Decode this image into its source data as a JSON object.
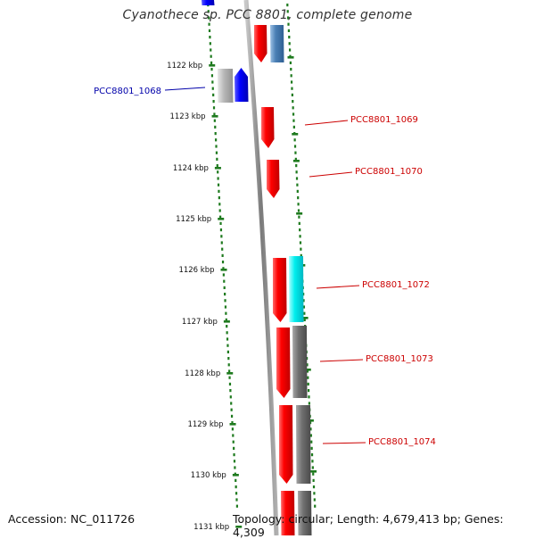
{
  "title": "Cyanothece sp. PCC 8801, complete genome",
  "accession": "Accession: NC_011726",
  "topology": "Topology: circular; Length: 4,679,413 bp; Genes: 4,309",
  "colors": {
    "backbone": "#8a8a8a",
    "dots": "#1e7a1e",
    "forward_gene": "#ff0000",
    "reverse_gene": "#0000ff",
    "steelblue_gene": "#4a7fb5",
    "cyan_gene": "#00e5ee",
    "gray_gene": "#707070",
    "light_gray_gene": "#b0b0b0",
    "label_red": "#cc0000",
    "label_blue": "#0000aa"
  },
  "ticks": [
    {
      "label": "1122 kbp"
    },
    {
      "label": "1123 kbp"
    },
    {
      "label": "1124 kbp"
    },
    {
      "label": "1125 kbp"
    },
    {
      "label": "1126 kbp"
    },
    {
      "label": "1127 kbp"
    },
    {
      "label": "1128 kbp"
    },
    {
      "label": "1129 kbp"
    },
    {
      "label": "1130 kbp"
    },
    {
      "label": "1131 kbp"
    }
  ],
  "gene_labels": [
    {
      "text": "PCC8801_1068",
      "color": "blue"
    },
    {
      "text": "PCC8801_1069",
      "color": "red"
    },
    {
      "text": "PCC8801_1070",
      "color": "red"
    },
    {
      "text": "PCC8801_1072",
      "color": "red"
    },
    {
      "text": "PCC8801_1073",
      "color": "red"
    },
    {
      "text": "PCC8801_1074",
      "color": "red"
    }
  ]
}
